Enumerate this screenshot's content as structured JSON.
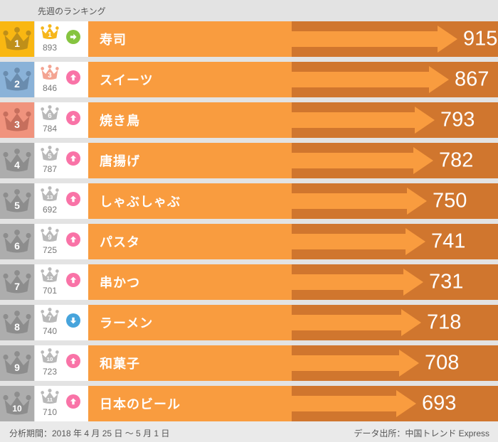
{
  "header": {
    "prev_week_label": "先週のランキング"
  },
  "footer": {
    "period": "分析期間：2018 年 4 月 25 日 ～ 5 月 1 日",
    "source": "データ出所：中国トレンド Express"
  },
  "colors": {
    "page_bg": "#E3E3E3",
    "footer_bg": "#EAEAEA",
    "bar_light": "#F99C3F",
    "bar_dark": "#D0762E",
    "prev_cell_bg": "#FFFFFF",
    "trend_up": "#F973A7",
    "trend_down": "#47A4DC",
    "trend_same": "#86C440",
    "rank1_cell": "#F9B712",
    "rank2_cell": "#8AB2D8",
    "rank3_cell": "#F0937D",
    "rank_other_cell": "#ADADAD"
  },
  "rows": [
    {
      "rank": "1",
      "label": "寿司",
      "value": 915,
      "prev_rank": "1",
      "prev_value": "893",
      "trend": "same",
      "cell": "#F9B712",
      "crown": "#BF8F19",
      "prev_crown": "#F6B61B"
    },
    {
      "rank": "2",
      "label": "スイーツ",
      "value": 867,
      "prev_rank": "3",
      "prev_value": "846",
      "trend": "up",
      "cell": "#8AB2D8",
      "crown": "#6A8CAE",
      "prev_crown": "#F3A492"
    },
    {
      "rank": "3",
      "label": "焼き鳥",
      "value": 793,
      "prev_rank": "6",
      "prev_value": "784",
      "trend": "up",
      "cell": "#F0937D",
      "crown": "#C66F5D",
      "prev_crown": "#B9B9B9"
    },
    {
      "rank": "4",
      "label": "唐揚げ",
      "value": 782,
      "prev_rank": "5",
      "prev_value": "787",
      "trend": "up",
      "cell": "#ADADAD",
      "crown": "#8D8D8D",
      "prev_crown": "#B9B9B9"
    },
    {
      "rank": "5",
      "label": "しゃぶしゃぶ",
      "value": 750,
      "prev_rank": "13",
      "prev_value": "692",
      "trend": "up",
      "cell": "#ADADAD",
      "crown": "#8D8D8D",
      "prev_crown": "#B9B9B9"
    },
    {
      "rank": "6",
      "label": "パスタ",
      "value": 741,
      "prev_rank": "9",
      "prev_value": "725",
      "trend": "up",
      "cell": "#ADADAD",
      "crown": "#8D8D8D",
      "prev_crown": "#B9B9B9"
    },
    {
      "rank": "7",
      "label": "串かつ",
      "value": 731,
      "prev_rank": "12",
      "prev_value": "701",
      "trend": "up",
      "cell": "#ADADAD",
      "crown": "#8D8D8D",
      "prev_crown": "#B9B9B9"
    },
    {
      "rank": "8",
      "label": "ラーメン",
      "value": 718,
      "prev_rank": "7",
      "prev_value": "740",
      "trend": "down",
      "cell": "#ADADAD",
      "crown": "#8D8D8D",
      "prev_crown": "#B9B9B9"
    },
    {
      "rank": "9",
      "label": "和菓子",
      "value": 708,
      "prev_rank": "10",
      "prev_value": "723",
      "trend": "up",
      "cell": "#ADADAD",
      "crown": "#8D8D8D",
      "prev_crown": "#B9B9B9"
    },
    {
      "rank": "10",
      "label": "日本のビール",
      "value": 693,
      "prev_rank": "11",
      "prev_value": "710",
      "trend": "up",
      "cell": "#ADADAD",
      "crown": "#8D8D8D",
      "prev_crown": "#B9B9B9"
    }
  ],
  "chart_data": {
    "type": "bar",
    "orientation": "horizontal",
    "title": "",
    "column_header": "先週のランキング",
    "categories": [
      "寿司",
      "スイーツ",
      "焼き鳥",
      "唐揚げ",
      "しゃぶしゃぶ",
      "パスタ",
      "串かつ",
      "ラーメン",
      "和菓子",
      "日本のビール"
    ],
    "ranks": [
      1,
      2,
      3,
      4,
      5,
      6,
      7,
      8,
      9,
      10
    ],
    "values": [
      915,
      867,
      793,
      782,
      750,
      741,
      731,
      718,
      708,
      693
    ],
    "prev_week_ranks": [
      1,
      3,
      6,
      5,
      13,
      9,
      12,
      7,
      10,
      11
    ],
    "prev_week_values": [
      893,
      846,
      784,
      787,
      692,
      725,
      701,
      740,
      723,
      710
    ],
    "trend": [
      "same",
      "up",
      "up",
      "up",
      "up",
      "up",
      "up",
      "down",
      "up",
      "up"
    ],
    "xlabel": "",
    "ylabel": "",
    "period_note": "分析期間：2018 年 4 月 25 日 ～ 5 月 1 日",
    "source_note": "データ出所：中国トレンド Express"
  }
}
